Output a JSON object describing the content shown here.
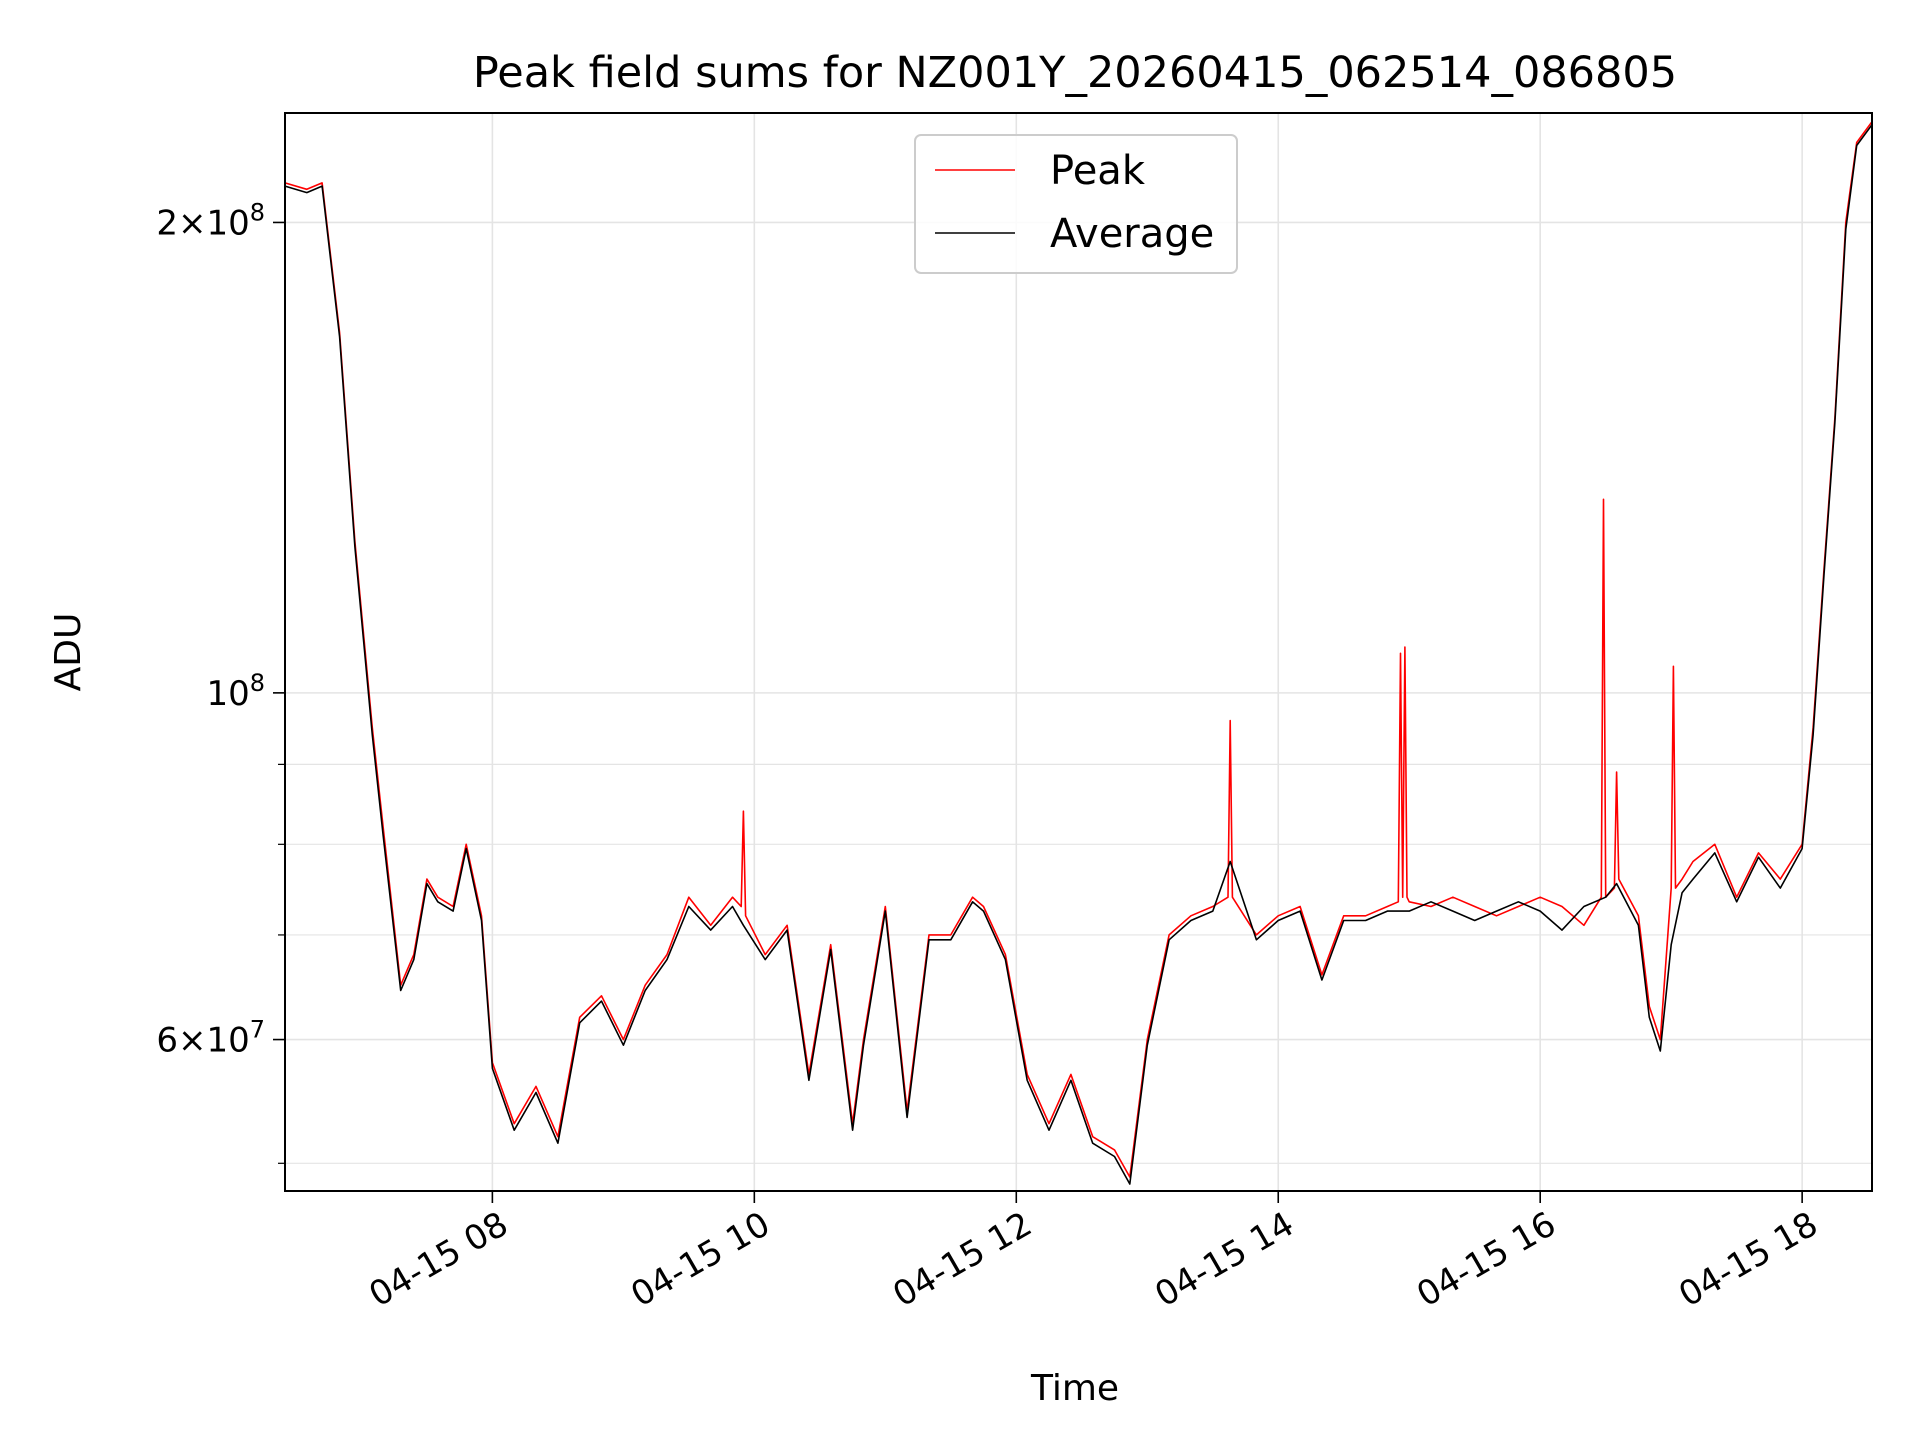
{
  "chart_data": {
    "type": "line",
    "title": "Peak field sums for NZ001Y_20260415_062514_086805",
    "xlabel": "Time",
    "ylabel": "ADU",
    "yscale": "log",
    "xlim": [
      "2026-04-15 06:25",
      "2026-04-15 18:32"
    ],
    "ylim": [
      48000000,
      235000000
    ],
    "grid": true,
    "legend_position": "upper center",
    "x_ticks": [
      {
        "label": "04-15 08",
        "t": "2026-04-15 08:00"
      },
      {
        "label": "04-15 10",
        "t": "2026-04-15 10:00"
      },
      {
        "label": "04-15 12",
        "t": "2026-04-15 12:00"
      },
      {
        "label": "04-15 14",
        "t": "2026-04-15 14:00"
      },
      {
        "label": "04-15 16",
        "t": "2026-04-15 16:00"
      },
      {
        "label": "04-15 18",
        "t": "2026-04-15 18:00"
      }
    ],
    "y_ticks_major": [
      {
        "value": 60000000,
        "base": "6",
        "exp": "7"
      },
      {
        "value": 100000000,
        "base": "",
        "exp": "8"
      },
      {
        "value": 200000000,
        "base": "2",
        "exp": "8"
      }
    ],
    "y_ticks_minor": [
      50000000,
      70000000,
      80000000,
      90000000,
      300000000
    ],
    "colors": {
      "peak": "#ff0000",
      "average": "#000000",
      "grid": "#e4e4e4"
    },
    "series": [
      {
        "name": "Peak",
        "color": "#ff0000",
        "x": [
          "2026-04-15 06:25",
          "2026-04-15 06:35",
          "2026-04-15 06:42",
          "2026-04-15 06:50",
          "2026-04-15 06:57",
          "2026-04-15 07:05",
          "2026-04-15 07:10",
          "2026-04-15 07:18",
          "2026-04-15 07:24",
          "2026-04-15 07:30",
          "2026-04-15 07:35",
          "2026-04-15 07:42",
          "2026-04-15 07:48",
          "2026-04-15 07:55",
          "2026-04-15 08:00",
          "2026-04-15 08:10",
          "2026-04-15 08:20",
          "2026-04-15 08:30",
          "2026-04-15 08:40",
          "2026-04-15 08:50",
          "2026-04-15 09:00",
          "2026-04-15 09:10",
          "2026-04-15 09:20",
          "2026-04-15 09:30",
          "2026-04-15 09:40",
          "2026-04-15 09:50",
          "2026-04-15 09:54",
          "2026-04-15 09:55",
          "2026-04-15 09:56",
          "2026-04-15 10:05",
          "2026-04-15 10:15",
          "2026-04-15 10:25",
          "2026-04-15 10:35",
          "2026-04-15 10:45",
          "2026-04-15 10:50",
          "2026-04-15 11:00",
          "2026-04-15 11:10",
          "2026-04-15 11:20",
          "2026-04-15 11:30",
          "2026-04-15 11:40",
          "2026-04-15 11:45",
          "2026-04-15 11:55",
          "2026-04-15 12:05",
          "2026-04-15 12:15",
          "2026-04-15 12:25",
          "2026-04-15 12:35",
          "2026-04-15 12:45",
          "2026-04-15 12:52",
          "2026-04-15 13:00",
          "2026-04-15 13:10",
          "2026-04-15 13:20",
          "2026-04-15 13:30",
          "2026-04-15 13:37",
          "2026-04-15 13:38",
          "2026-04-15 13:39",
          "2026-04-15 13:50",
          "2026-04-15 14:00",
          "2026-04-15 14:10",
          "2026-04-15 14:20",
          "2026-04-15 14:30",
          "2026-04-15 14:40",
          "2026-04-15 14:50",
          "2026-04-15 14:55",
          "2026-04-15 14:56",
          "2026-04-15 14:57",
          "2026-04-15 14:58",
          "2026-04-15 14:59",
          "2026-04-15 15:00",
          "2026-04-15 15:10",
          "2026-04-15 15:20",
          "2026-04-15 15:30",
          "2026-04-15 15:40",
          "2026-04-15 15:50",
          "2026-04-15 16:00",
          "2026-04-15 16:10",
          "2026-04-15 16:20",
          "2026-04-15 16:28",
          "2026-04-15 16:29",
          "2026-04-15 16:30",
          "2026-04-15 16:34",
          "2026-04-15 16:35",
          "2026-04-15 16:36",
          "2026-04-15 16:45",
          "2026-04-15 16:50",
          "2026-04-15 16:55",
          "2026-04-15 17:00",
          "2026-04-15 17:01",
          "2026-04-15 17:02",
          "2026-04-15 17:05",
          "2026-04-15 17:10",
          "2026-04-15 17:20",
          "2026-04-15 17:30",
          "2026-04-15 17:40",
          "2026-04-15 17:50",
          "2026-04-15 18:00",
          "2026-04-15 18:05",
          "2026-04-15 18:10",
          "2026-04-15 18:15",
          "2026-04-15 18:20",
          "2026-04-15 18:25",
          "2026-04-15 18:32"
        ],
        "y": [
          212000000,
          210000000,
          212000000,
          170000000,
          125000000,
          95000000,
          82000000,
          65000000,
          68000000,
          76000000,
          74000000,
          73000000,
          80000000,
          72000000,
          58000000,
          53000000,
          56000000,
          52000000,
          62000000,
          64000000,
          60000000,
          65000000,
          68000000,
          74000000,
          71000000,
          74000000,
          73000000,
          84000000,
          72000000,
          68000000,
          71000000,
          57000000,
          69000000,
          53000000,
          60000000,
          73000000,
          54000000,
          70000000,
          70000000,
          74000000,
          73000000,
          68000000,
          57000000,
          53000000,
          57000000,
          52000000,
          51000000,
          49000000,
          60000000,
          70000000,
          72000000,
          73000000,
          74000000,
          96000000,
          74000000,
          70000000,
          72000000,
          73000000,
          66000000,
          72000000,
          72000000,
          73000000,
          73500000,
          106000000,
          74000000,
          107000000,
          74000000,
          73500000,
          73000000,
          74000000,
          73000000,
          72000000,
          73000000,
          74000000,
          73000000,
          71000000,
          74000000,
          133000000,
          74000000,
          75000000,
          89000000,
          76000000,
          72000000,
          63000000,
          60000000,
          75000000,
          104000000,
          75000000,
          76000000,
          78000000,
          80000000,
          74000000,
          79000000,
          76000000,
          80000000,
          95000000,
          120000000,
          150000000,
          200000000,
          225000000,
          232000000
        ]
      },
      {
        "name": "Average",
        "color": "#000000",
        "x": [
          "2026-04-15 06:25",
          "2026-04-15 06:35",
          "2026-04-15 06:42",
          "2026-04-15 06:50",
          "2026-04-15 06:57",
          "2026-04-15 07:05",
          "2026-04-15 07:10",
          "2026-04-15 07:18",
          "2026-04-15 07:24",
          "2026-04-15 07:30",
          "2026-04-15 07:35",
          "2026-04-15 07:42",
          "2026-04-15 07:48",
          "2026-04-15 07:55",
          "2026-04-15 08:00",
          "2026-04-15 08:10",
          "2026-04-15 08:20",
          "2026-04-15 08:30",
          "2026-04-15 08:40",
          "2026-04-15 08:50",
          "2026-04-15 09:00",
          "2026-04-15 09:10",
          "2026-04-15 09:20",
          "2026-04-15 09:30",
          "2026-04-15 09:40",
          "2026-04-15 09:50",
          "2026-04-15 09:55",
          "2026-04-15 10:05",
          "2026-04-15 10:15",
          "2026-04-15 10:25",
          "2026-04-15 10:35",
          "2026-04-15 10:45",
          "2026-04-15 10:50",
          "2026-04-15 11:00",
          "2026-04-15 11:10",
          "2026-04-15 11:20",
          "2026-04-15 11:30",
          "2026-04-15 11:40",
          "2026-04-15 11:45",
          "2026-04-15 11:55",
          "2026-04-15 12:05",
          "2026-04-15 12:15",
          "2026-04-15 12:25",
          "2026-04-15 12:35",
          "2026-04-15 12:45",
          "2026-04-15 12:52",
          "2026-04-15 13:00",
          "2026-04-15 13:10",
          "2026-04-15 13:20",
          "2026-04-15 13:30",
          "2026-04-15 13:38",
          "2026-04-15 13:50",
          "2026-04-15 14:00",
          "2026-04-15 14:10",
          "2026-04-15 14:20",
          "2026-04-15 14:30",
          "2026-04-15 14:40",
          "2026-04-15 14:50",
          "2026-04-15 15:00",
          "2026-04-15 15:10",
          "2026-04-15 15:20",
          "2026-04-15 15:30",
          "2026-04-15 15:40",
          "2026-04-15 15:50",
          "2026-04-15 16:00",
          "2026-04-15 16:10",
          "2026-04-15 16:20",
          "2026-04-15 16:30",
          "2026-04-15 16:35",
          "2026-04-15 16:45",
          "2026-04-15 16:50",
          "2026-04-15 16:55",
          "2026-04-15 17:00",
          "2026-04-15 17:05",
          "2026-04-15 17:10",
          "2026-04-15 17:20",
          "2026-04-15 17:30",
          "2026-04-15 17:40",
          "2026-04-15 17:50",
          "2026-04-15 18:00",
          "2026-04-15 18:05",
          "2026-04-15 18:10",
          "2026-04-15 18:15",
          "2026-04-15 18:20",
          "2026-04-15 18:25",
          "2026-04-15 18:32"
        ],
        "y": [
          211000000,
          209000000,
          211000000,
          169000000,
          124000000,
          94000000,
          81000000,
          64500000,
          67500000,
          75500000,
          73500000,
          72500000,
          79500000,
          71500000,
          57500000,
          52500000,
          55500000,
          51500000,
          61500000,
          63500000,
          59500000,
          64500000,
          67500000,
          73000000,
          70500000,
          73000000,
          71000000,
          67500000,
          70500000,
          56500000,
          68500000,
          52500000,
          59500000,
          72500000,
          53500000,
          69500000,
          69500000,
          73500000,
          72500000,
          67500000,
          56500000,
          52500000,
          56500000,
          51500000,
          50500000,
          48500000,
          59500000,
          69500000,
          71500000,
          72500000,
          78000000,
          69500000,
          71500000,
          72500000,
          65500000,
          71500000,
          71500000,
          72500000,
          72500000,
          73500000,
          72500000,
          71500000,
          72500000,
          73500000,
          72500000,
          70500000,
          73000000,
          74000000,
          75500000,
          71000000,
          62000000,
          59000000,
          69000000,
          74500000,
          76000000,
          79000000,
          73500000,
          78500000,
          75000000,
          79500000,
          94000000,
          119000000,
          149000000,
          198000000,
          224000000,
          231000000
        ]
      }
    ]
  }
}
